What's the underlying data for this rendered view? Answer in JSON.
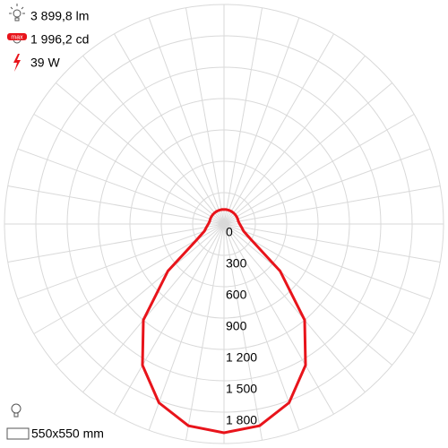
{
  "chart_data": {
    "type": "polar",
    "info": {
      "flux": "3 899,8 lm",
      "intensity": "1 996,2 cd",
      "power": "39 W",
      "dimensions": "550x550 mm"
    },
    "angles": [
      -180,
      -170,
      -160,
      -150,
      -140,
      -130,
      -120,
      -110,
      -100,
      -90,
      -80,
      -70,
      -60,
      -50,
      -40,
      -30,
      -20,
      -10,
      0,
      10,
      20,
      30,
      40,
      50,
      60,
      70,
      80,
      90,
      100,
      110,
      120,
      130,
      140,
      150,
      160,
      170,
      180
    ],
    "values": [
      140,
      140,
      140,
      140,
      140,
      140,
      140,
      140,
      140,
      150,
      170,
      200,
      300,
      700,
      1200,
      1560,
      1820,
      1960,
      1997,
      1960,
      1820,
      1560,
      1200,
      700,
      300,
      200,
      170,
      150,
      140,
      140,
      140,
      140,
      140,
      140,
      140,
      140,
      140
    ],
    "color": "#e8141b",
    "rlim": [
      0,
      2100
    ],
    "rticks": [
      0,
      300,
      600,
      900,
      {
        "value": 1200,
        "label": "1 200"
      },
      {
        "value": 1500,
        "label": "1 500"
      },
      {
        "value": 1800,
        "label": "1 800"
      }
    ]
  }
}
